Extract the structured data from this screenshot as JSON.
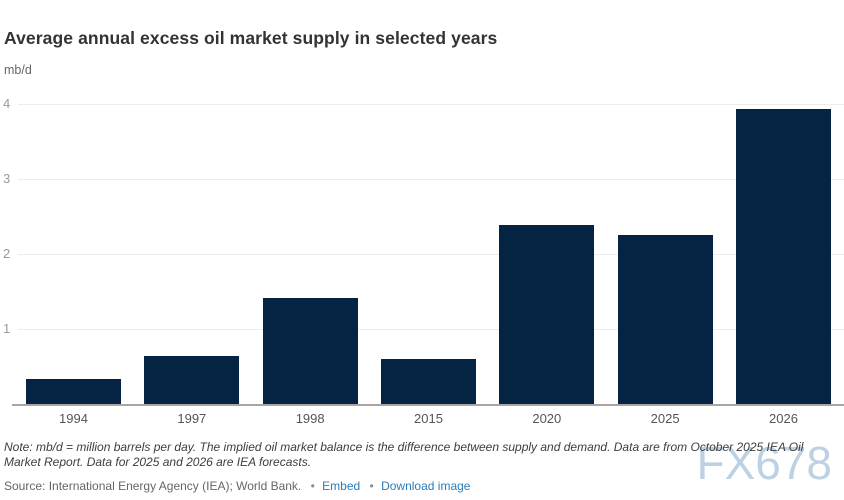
{
  "header": {
    "title": "Average annual excess oil market supply in selected years",
    "unit_label": "mb/d"
  },
  "chart_data": {
    "type": "bar",
    "title": "Average annual excess oil market supply in selected years",
    "categories": [
      "1994",
      "1997",
      "1998",
      "2015",
      "2020",
      "2025",
      "2026"
    ],
    "values": [
      0.34,
      0.65,
      1.42,
      0.6,
      2.39,
      2.26,
      3.94
    ],
    "xlabel": "",
    "ylabel": "mb/d",
    "ylim": [
      0,
      4.3
    ],
    "yticks": [
      1,
      2,
      3,
      4
    ],
    "grid": true,
    "legend": "none",
    "bar_color": "#052343"
  },
  "footer": {
    "note": "Note: mb/d = million barrels per day. The implied oil market balance is the difference between supply and demand. Data are from October 2025 IEA Oil Market Report. Data for 2025 and 2026 are IEA forecasts.",
    "source_text": "Source: International Energy Agency (IEA); World Bank.",
    "bullet": "•",
    "links": [
      {
        "label": "Embed"
      },
      {
        "label": "Download image"
      }
    ]
  },
  "watermark": "FX678",
  "colors": {
    "bar": "#052343",
    "link": "#2b7cba",
    "gridline": "#ececec",
    "axis_line": "#a6a6a6",
    "watermark": "#bdd1e4"
  }
}
